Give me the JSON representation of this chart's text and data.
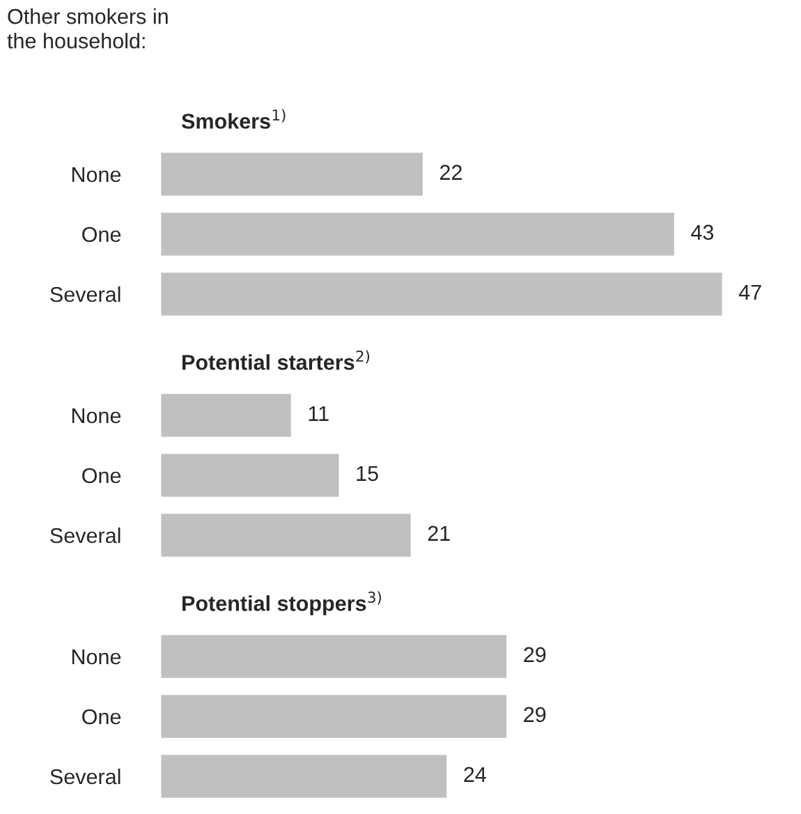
{
  "chart_data": [
    {
      "type": "bar",
      "orientation": "horizontal",
      "title": "Smokers$^{1)}$",
      "annotations": [
        "Other smokers in\nthe household:"
      ],
      "categories": [
        "None",
        "One",
        "Several"
      ],
      "values": [
        22,
        43,
        47
      ],
      "color": "#c0c0c0",
      "data_labels": true
    },
    {
      "type": "bar",
      "orientation": "horizontal",
      "title": "Potential starters$^{2)}$",
      "categories": [
        "None",
        "One",
        "Several"
      ],
      "values": [
        11,
        15,
        21
      ],
      "color": "#c0c0c0",
      "data_labels": true
    },
    {
      "type": "bar",
      "orientation": "horizontal",
      "title": "Potential stoppers$^{3)}$",
      "categories": [
        "None",
        "One",
        "Several"
      ],
      "values": [
        29,
        29,
        24
      ],
      "color": "#c0c0c0",
      "data_labels": true
    }
  ]
}
